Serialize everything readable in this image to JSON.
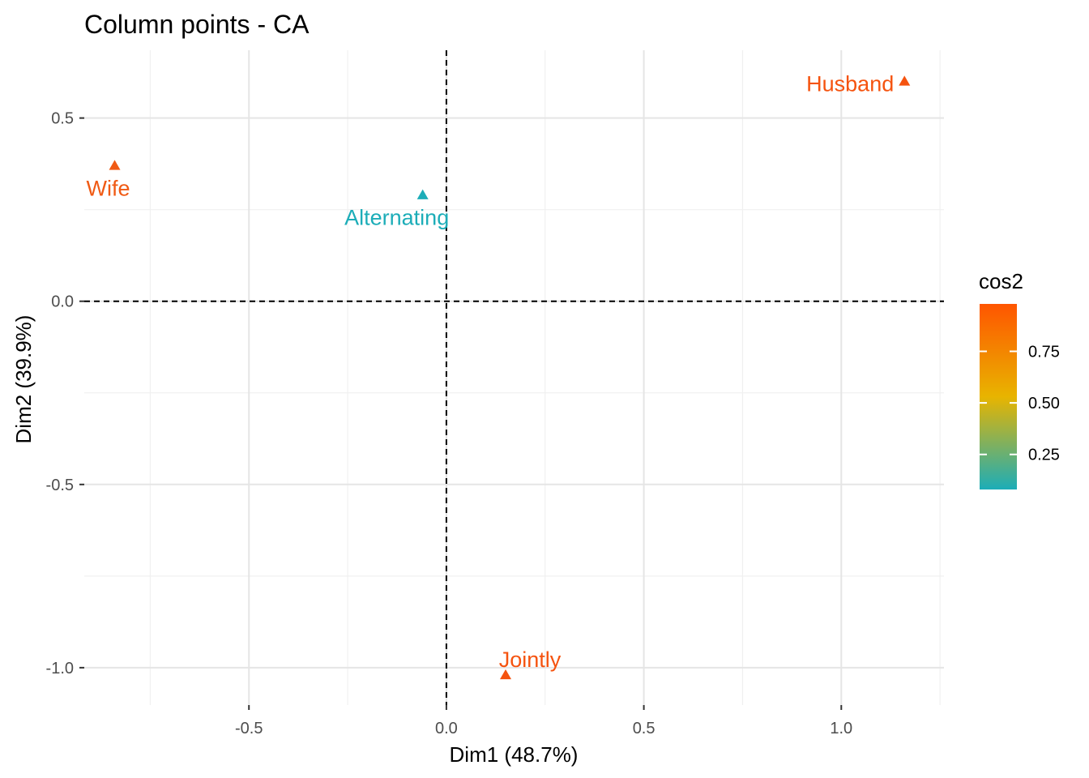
{
  "chart_data": {
    "type": "scatter",
    "title": "Column points - CA",
    "xlabel": "Dim1 (48.7%)",
    "ylabel": "Dim2 (39.9%)",
    "xlim": [
      -0.917,
      1.26
    ],
    "ylim": [
      -1.102,
      0.685
    ],
    "x_ticks": [
      -0.5,
      0.0,
      0.5,
      1.0
    ],
    "x_tick_labels": [
      "-0.5",
      "0.0",
      "0.5",
      "1.0"
    ],
    "y_ticks": [
      -1.0,
      -0.5,
      0.0,
      0.5
    ],
    "y_tick_labels": [
      "-1.0",
      "-0.5",
      "0.0",
      "0.5"
    ],
    "grid": true,
    "reference_lines": {
      "x": 0,
      "y": 0,
      "style": "dashed"
    },
    "marker": "triangle",
    "points": [
      {
        "label": "Wife",
        "x": -0.84,
        "y": 0.37,
        "cos2": 0.93,
        "color": "#F05A14"
      },
      {
        "label": "Alternating",
        "x": -0.06,
        "y": 0.29,
        "cos2": 0.08,
        "color": "#1CADB8"
      },
      {
        "label": "Husband",
        "x": 1.16,
        "y": 0.6,
        "cos2": 0.97,
        "color": "#F5530F"
      },
      {
        "label": "Jointly",
        "x": 0.15,
        "y": -1.02,
        "cos2": 0.98,
        "color": "#F5530F"
      }
    ],
    "legend": {
      "title": "cos2",
      "position": "right",
      "range": [
        0.08,
        0.98
      ],
      "ticks": [
        0.25,
        0.5,
        0.75
      ],
      "tick_labels": [
        "0.25",
        "0.50",
        "0.75"
      ],
      "gradient": [
        "#1CADB8",
        "#E8B400",
        "#FF5500"
      ]
    }
  }
}
